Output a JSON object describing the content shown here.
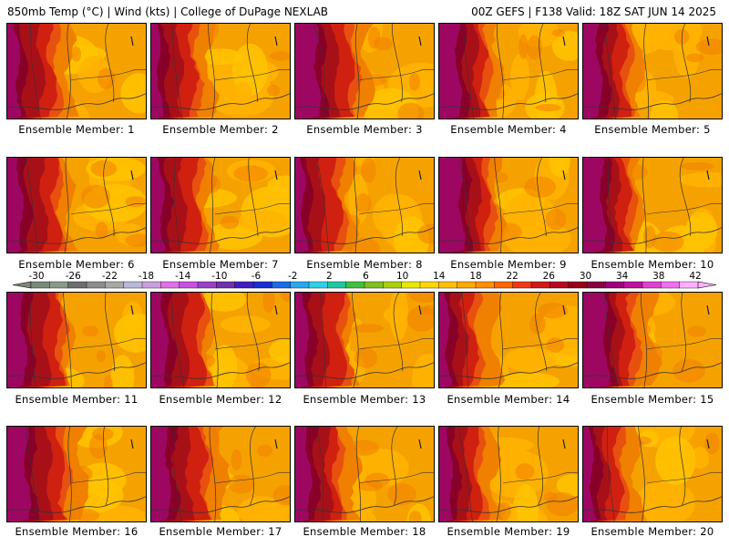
{
  "header": {
    "left": "850mb Temp (°C) | Wind (kts) | College of DuPage NEXLAB",
    "right": "00Z GEFS | F138 Valid: 18Z SAT JUN 14 2025"
  },
  "panels": [
    {
      "label": "Ensemble Member: 1",
      "icon": "temperature-map"
    },
    {
      "label": "Ensemble Member: 2",
      "icon": "temperature-map"
    },
    {
      "label": "Ensemble Member: 3",
      "icon": "temperature-map"
    },
    {
      "label": "Ensemble Member: 4",
      "icon": "temperature-map"
    },
    {
      "label": "Ensemble Member: 5",
      "icon": "temperature-map"
    },
    {
      "label": "Ensemble Member: 6",
      "icon": "temperature-map"
    },
    {
      "label": "Ensemble Member: 7",
      "icon": "temperature-map"
    },
    {
      "label": "Ensemble Member: 8",
      "icon": "temperature-map"
    },
    {
      "label": "Ensemble Member: 9",
      "icon": "temperature-map"
    },
    {
      "label": "Ensemble Member: 10",
      "icon": "temperature-map"
    },
    {
      "label": "Ensemble Member: 11",
      "icon": "temperature-map"
    },
    {
      "label": "Ensemble Member: 12",
      "icon": "temperature-map"
    },
    {
      "label": "Ensemble Member: 13",
      "icon": "temperature-map"
    },
    {
      "label": "Ensemble Member: 14",
      "icon": "temperature-map"
    },
    {
      "label": "Ensemble Member: 15",
      "icon": "temperature-map"
    },
    {
      "label": "Ensemble Member: 16",
      "icon": "temperature-map"
    },
    {
      "label": "Ensemble Member: 17",
      "icon": "temperature-map"
    },
    {
      "label": "Ensemble Member: 18",
      "icon": "temperature-map"
    },
    {
      "label": "Ensemble Member: 19",
      "icon": "temperature-map"
    },
    {
      "label": "Ensemble Member: 20",
      "icon": "temperature-map"
    }
  ],
  "colorbar": {
    "ticks": [
      "-30",
      "-26",
      "-22",
      "-18",
      "-14",
      "-10",
      "-6",
      "-2",
      "2",
      "6",
      "10",
      "14",
      "18",
      "22",
      "26",
      "30",
      "34",
      "38",
      "42"
    ],
    "colors": [
      "#7a8a7a",
      "#8a9a8a",
      "#6e6e6e",
      "#8c8c8c",
      "#a8a8a8",
      "#b8b8d8",
      "#c8a0e0",
      "#e070e8",
      "#c850e0",
      "#9a40c8",
      "#7030b0",
      "#4020c0",
      "#1830d0",
      "#1c6ce8",
      "#28a8f0",
      "#30d0e8",
      "#20c8a0",
      "#40c040",
      "#80c020",
      "#a8d010",
      "#e8e800",
      "#ffd800",
      "#ffc000",
      "#ffa800",
      "#ff9000",
      "#ff6800",
      "#f03818",
      "#d01818",
      "#b80820",
      "#980018",
      "#880040",
      "#a00080",
      "#c010a0",
      "#e040d0",
      "#f070f0",
      "#ffb0ff"
    ]
  },
  "palette": {
    "orange": "#f5a200",
    "orange_light": "#ffb400",
    "yellow_orange": "#ffc400",
    "dark_orange": "#f08000",
    "red_orange": "#e85010",
    "red": "#d02010",
    "dark_red": "#a81018",
    "maroon": "#880028",
    "magenta": "#a00868"
  }
}
